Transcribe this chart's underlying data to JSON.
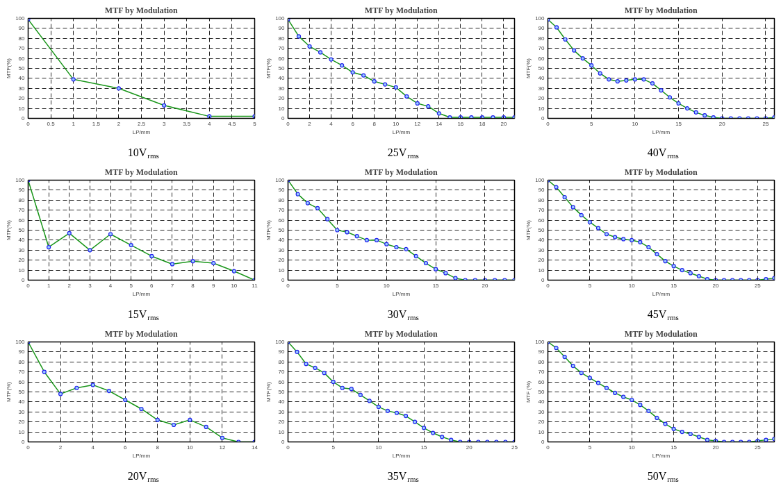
{
  "chart_data": [
    {
      "type": "line",
      "title": "MTF by Modulation",
      "xlabel": "LP/mm",
      "ylabel": "MTF(%)",
      "annotations": [
        "10V$_{rms}$"
      ],
      "x": [
        0,
        1,
        2,
        3,
        4,
        5
      ],
      "series": [
        {
          "color": "#1a961a",
          "values": [
            99,
            39,
            30,
            13,
            2,
            2
          ]
        }
      ],
      "xlim": [
        0,
        5
      ],
      "xticks": [
        0,
        0.5,
        1,
        1.5,
        2,
        2.5,
        3,
        3.5,
        4,
        4.5,
        5
      ],
      "ylim": [
        0,
        100
      ],
      "yticks": [
        0,
        10,
        20,
        30,
        40,
        50,
        60,
        70,
        80,
        90,
        100
      ],
      "grid": true,
      "marker": "circle",
      "line_style": "solid"
    },
    {
      "type": "line",
      "title": "MTF by Modulation",
      "xlabel": "LP/mm",
      "ylabel": "MTF(%)",
      "annotations": [
        "25V$_{rms}$"
      ],
      "x": [
        0,
        1,
        2,
        3,
        4,
        5,
        6,
        7,
        8,
        9,
        10,
        11,
        12,
        13,
        14,
        15,
        16,
        17,
        18,
        19,
        20,
        21
      ],
      "series": [
        {
          "color": "#1a961a",
          "values": [
            99,
            82,
            72,
            66,
            59,
            53,
            46,
            43,
            37,
            34,
            31,
            22,
            15,
            12,
            5,
            1,
            1,
            1,
            1,
            1,
            1,
            1
          ]
        }
      ],
      "xlim": [
        0,
        21
      ],
      "xticks": [
        0,
        2,
        4,
        6,
        8,
        10,
        12,
        14,
        16,
        18,
        20
      ],
      "ylim": [
        0,
        100
      ],
      "yticks": [
        0,
        10,
        20,
        30,
        40,
        50,
        60,
        70,
        80,
        90,
        100
      ],
      "grid": true,
      "marker": "circle",
      "line_style": "solid"
    },
    {
      "type": "line",
      "title": "MTF by Modulation",
      "xlabel": "LP/mm",
      "ylabel": "MTF(%)",
      "annotations": [
        "40V$_{rms}$"
      ],
      "x": [
        0,
        1,
        2,
        3,
        4,
        5,
        6,
        7,
        8,
        9,
        10,
        11,
        12,
        13,
        14,
        15,
        16,
        17,
        18,
        19,
        20,
        21,
        22,
        23,
        24,
        25,
        26
      ],
      "series": [
        {
          "color": "#1a961a",
          "values": [
            99,
            91,
            79,
            68,
            60,
            53,
            45,
            39,
            37,
            38,
            39,
            39,
            35,
            28,
            21,
            15,
            10,
            6,
            3,
            1,
            0,
            0,
            0,
            0,
            0,
            0,
            1
          ]
        }
      ],
      "xlim": [
        0,
        26
      ],
      "xticks": [
        0,
        5,
        10,
        15,
        20,
        25
      ],
      "ylim": [
        0,
        100
      ],
      "yticks": [
        0,
        10,
        20,
        30,
        40,
        50,
        60,
        70,
        80,
        90,
        100
      ],
      "grid": true,
      "marker": "circle",
      "line_style": "solid"
    },
    {
      "type": "line",
      "title": "MTF by Modulation",
      "xlabel": "LP/mm",
      "ylabel": "MTF(%)",
      "annotations": [
        "15V$_{rms}$"
      ],
      "x": [
        0,
        1,
        2,
        3,
        4,
        5,
        6,
        7,
        8,
        9,
        10,
        11
      ],
      "series": [
        {
          "color": "#1a961a",
          "values": [
            100,
            33,
            47,
            30,
            46,
            35,
            24,
            16,
            19,
            17,
            9,
            0
          ]
        }
      ],
      "xlim": [
        0,
        11
      ],
      "xticks": [
        0,
        1,
        2,
        3,
        4,
        5,
        6,
        7,
        8,
        9,
        10,
        11
      ],
      "ylim": [
        0,
        100
      ],
      "yticks": [
        0,
        10,
        20,
        30,
        40,
        50,
        60,
        70,
        80,
        90,
        100
      ],
      "grid": true,
      "marker": "circle",
      "line_style": "solid"
    },
    {
      "type": "line",
      "title": "MTF by Modulation",
      "xlabel": "LP/mm",
      "ylabel": "MTF(%)",
      "annotations": [
        "30V$_{rms}$"
      ],
      "x": [
        0,
        1,
        2,
        3,
        4,
        5,
        6,
        7,
        8,
        9,
        10,
        11,
        12,
        13,
        14,
        15,
        16,
        17,
        18,
        19,
        20,
        21,
        22,
        23
      ],
      "series": [
        {
          "color": "#1a961a",
          "values": [
            100,
            86,
            77,
            72,
            61,
            50,
            48,
            44,
            40,
            40,
            36,
            33,
            31,
            24,
            17,
            11,
            7,
            2,
            0,
            0,
            0,
            0,
            0,
            0
          ]
        }
      ],
      "xlim": [
        0,
        23
      ],
      "xticks": [
        0,
        5,
        10,
        15,
        20
      ],
      "ylim": [
        0,
        100
      ],
      "yticks": [
        0,
        10,
        20,
        30,
        40,
        50,
        60,
        70,
        80,
        90,
        100
      ],
      "grid": true,
      "marker": "circle",
      "line_style": "solid"
    },
    {
      "type": "line",
      "title": "MTF by Modulation",
      "xlabel": "LP/mm",
      "ylabel": "MTF(%)",
      "annotations": [
        "45V$_{rms}$"
      ],
      "x": [
        0,
        1,
        2,
        3,
        4,
        5,
        6,
        7,
        8,
        9,
        10,
        11,
        12,
        13,
        14,
        15,
        16,
        17,
        18,
        19,
        20,
        21,
        22,
        23,
        24,
        25,
        26,
        27
      ],
      "series": [
        {
          "color": "#1a961a",
          "values": [
            100,
            93,
            83,
            73,
            65,
            58,
            52,
            46,
            43,
            41,
            40,
            38,
            33,
            26,
            19,
            14,
            10,
            7,
            4,
            1,
            0,
            0,
            0,
            0,
            0,
            0,
            1,
            2
          ]
        }
      ],
      "xlim": [
        0,
        27
      ],
      "xticks": [
        0,
        5,
        10,
        15,
        20,
        25
      ],
      "ylim": [
        0,
        100
      ],
      "yticks": [
        0,
        10,
        20,
        30,
        40,
        50,
        60,
        70,
        80,
        90,
        100
      ],
      "grid": true,
      "marker": "circle",
      "line_style": "solid"
    },
    {
      "type": "line",
      "title": "MTF by Modulation",
      "xlabel": "LP/mm",
      "ylabel": "MTF(%)",
      "annotations": [
        "20V$_{rms}$"
      ],
      "x": [
        0,
        1,
        2,
        3,
        4,
        5,
        6,
        7,
        8,
        9,
        10,
        11,
        12,
        13,
        14
      ],
      "series": [
        {
          "color": "#1a961a",
          "values": [
            100,
            70,
            48,
            54,
            57,
            51,
            42,
            33,
            22,
            17,
            22,
            15,
            4,
            0,
            0
          ]
        }
      ],
      "xlim": [
        0,
        14
      ],
      "xticks": [
        0,
        2,
        4,
        6,
        8,
        10,
        12,
        14
      ],
      "ylim": [
        0,
        100
      ],
      "yticks": [
        0,
        10,
        20,
        30,
        40,
        50,
        60,
        70,
        80,
        90,
        100
      ],
      "grid": true,
      "marker": "circle",
      "line_style": "solid"
    },
    {
      "type": "line",
      "title": "MTF by Modulation",
      "xlabel": "LP/mm",
      "ylabel": "MTF(%)",
      "annotations": [
        "35V$_{rms}$"
      ],
      "x": [
        0,
        1,
        2,
        3,
        4,
        5,
        6,
        7,
        8,
        9,
        10,
        11,
        12,
        13,
        14,
        15,
        16,
        17,
        18,
        19,
        20,
        21,
        22,
        23,
        24,
        25
      ],
      "series": [
        {
          "color": "#1a961a",
          "values": [
            100,
            90,
            78,
            74,
            69,
            60,
            54,
            53,
            47,
            41,
            35,
            31,
            29,
            26,
            20,
            14,
            9,
            5,
            2,
            0,
            0,
            0,
            0,
            0,
            0,
            0
          ]
        }
      ],
      "xlim": [
        0,
        25
      ],
      "xticks": [
        0,
        5,
        10,
        15,
        20,
        25
      ],
      "ylim": [
        0,
        100
      ],
      "yticks": [
        0,
        10,
        20,
        30,
        40,
        50,
        60,
        70,
        80,
        90,
        100
      ],
      "grid": true,
      "marker": "circle",
      "line_style": "solid"
    },
    {
      "type": "line",
      "title": "MTF by Modulation",
      "xlabel": "LP/mm",
      "ylabel": "MTF (%)",
      "annotations": [
        "50V$_{rms}$"
      ],
      "x": [
        0,
        1,
        2,
        3,
        4,
        5,
        6,
        7,
        8,
        9,
        10,
        11,
        12,
        13,
        14,
        15,
        16,
        17,
        18,
        19,
        20,
        21,
        22,
        23,
        24,
        25,
        26,
        27
      ],
      "series": [
        {
          "color": "#1a961a",
          "values": [
            100,
            94,
            85,
            76,
            69,
            64,
            59,
            54,
            49,
            45,
            42,
            37,
            31,
            24,
            18,
            13,
            10,
            8,
            5,
            2,
            1,
            0,
            0,
            0,
            0,
            1,
            2,
            3
          ]
        }
      ],
      "xlim": [
        0,
        27
      ],
      "xticks": [
        0,
        5,
        10,
        15,
        20,
        25
      ],
      "ylim": [
        0,
        100
      ],
      "yticks": [
        0,
        10,
        20,
        30,
        40,
        50,
        60,
        70,
        80,
        90,
        100
      ],
      "grid": true,
      "marker": "circle",
      "line_style": "solid"
    }
  ]
}
